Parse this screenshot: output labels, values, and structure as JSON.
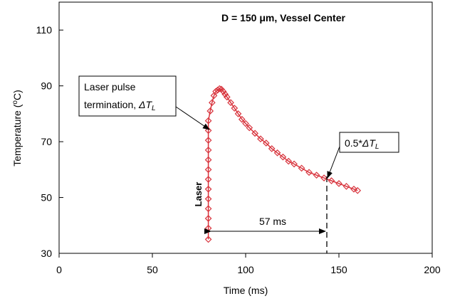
{
  "chart_data": {
    "type": "scatter",
    "title": "D = 150 μm, Vessel Center",
    "xlabel": "Time (ms)",
    "ylabel_main": "Temperature (",
    "ylabel_sup": "o",
    "ylabel_tail": "C)",
    "xlim": [
      0,
      200
    ],
    "ylim": [
      30,
      120
    ],
    "x_ticks": [
      "0",
      "50",
      "100",
      "150",
      "200"
    ],
    "y_ticks": [
      "30",
      "50",
      "70",
      "90",
      "110"
    ],
    "grid": false,
    "legend": "none",
    "marker_color": "#d8343d",
    "line_color": "#d8343d",
    "marker": "diamond-open",
    "series": [
      {
        "x": [
          80,
          80,
          80,
          80,
          80,
          80,
          80,
          80,
          80,
          80,
          80,
          80,
          80,
          81,
          82,
          83,
          84,
          85,
          86,
          87,
          88,
          89,
          90,
          92,
          94,
          96,
          98,
          100,
          102,
          105,
          108,
          111,
          114,
          117,
          120,
          123,
          126,
          130,
          134,
          138,
          142,
          146,
          150,
          154,
          158,
          160
        ],
        "y": [
          35,
          39,
          42.5,
          46,
          49.5,
          53,
          56.5,
          60,
          63.5,
          67,
          70.5,
          74,
          77.5,
          81,
          84,
          86.5,
          88,
          88.5,
          89,
          88.8,
          88,
          87,
          86,
          84,
          82,
          80,
          78,
          76.5,
          75,
          73,
          71,
          69.5,
          67.5,
          66,
          64.5,
          63,
          62,
          60.5,
          59,
          58,
          57,
          56,
          55,
          54,
          53,
          52.5
        ]
      }
    ],
    "annotations": {
      "laser_pulse_line1": "Laser pulse",
      "laser_pulse_line2": "termination, ",
      "delta_tl": "ΔT",
      "delta_tl_sub": "L",
      "half_delta_prefix": "0.5*",
      "half_delta": "ΔT",
      "half_delta_sub": "L",
      "interval": "57 ms",
      "laser_label": "Laser"
    }
  }
}
